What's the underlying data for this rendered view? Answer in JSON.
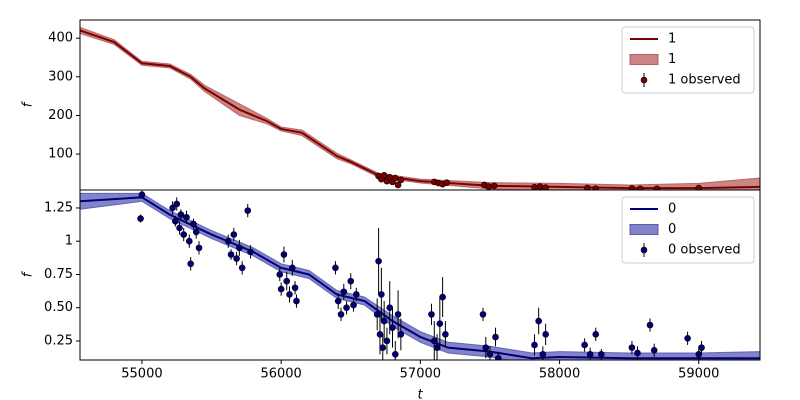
{
  "chart_data": [
    {
      "type": "line",
      "ylabel": "f",
      "xlim": [
        54555,
        59440
      ],
      "ylim": [
        7,
        447
      ],
      "yticks": [
        100,
        200,
        300,
        400
      ],
      "legend": "upper right",
      "series": [
        {
          "name": "1",
          "kind": "line",
          "color": "#7b0000",
          "x": [
            54555,
            54800,
            55000,
            55200,
            55350,
            55450,
            55700,
            55900,
            56000,
            56150,
            56400,
            56500,
            56700,
            57000,
            57500,
            58000,
            58500,
            59000,
            59440
          ],
          "values": [
            420,
            390,
            335,
            328,
            300,
            270,
            215,
            185,
            165,
            155,
            95,
            80,
            45,
            30,
            18,
            15,
            12,
            12,
            15
          ]
        },
        {
          "name": "1",
          "kind": "band",
          "color": "#b85c5c",
          "x": [
            54555,
            54800,
            55000,
            55200,
            55350,
            55450,
            55700,
            55900,
            56000,
            56150,
            56400,
            56500,
            56700,
            57000,
            57500,
            58000,
            58500,
            59000,
            59440
          ],
          "lower": [
            412,
            384,
            330,
            323,
            294,
            262,
            200,
            178,
            160,
            148,
            88,
            75,
            40,
            25,
            10,
            6,
            5,
            3,
            0
          ],
          "upper": [
            428,
            396,
            340,
            333,
            306,
            278,
            230,
            192,
            170,
            162,
            102,
            85,
            50,
            35,
            26,
            24,
            20,
            24,
            38
          ]
        },
        {
          "name": "1 observed",
          "kind": "points",
          "color": "#7b0000",
          "x": [
            56700,
            56720,
            56740,
            56760,
            56780,
            56800,
            56820,
            56840,
            56860,
            57100,
            57130,
            57160,
            57190,
            57460,
            57490,
            57530,
            57820,
            57860,
            57900,
            58200,
            58260,
            58520,
            58580,
            58700,
            59000
          ],
          "values": [
            43,
            35,
            45,
            30,
            40,
            28,
            38,
            20,
            33,
            28,
            25,
            22,
            26,
            20,
            16,
            18,
            14,
            16,
            13,
            12,
            10,
            11,
            10,
            10,
            12
          ],
          "errors": [
            3,
            3,
            3,
            3,
            3,
            3,
            3,
            3,
            3,
            3,
            3,
            3,
            3,
            3,
            3,
            3,
            3,
            3,
            3,
            3,
            3,
            3,
            3,
            3,
            3
          ]
        }
      ]
    },
    {
      "type": "line",
      "ylabel": "f",
      "xlabel": "t",
      "xlim": [
        54555,
        59440
      ],
      "ylim": [
        0.107,
        1.385
      ],
      "xticks": [
        55000,
        56000,
        57000,
        58000,
        59000
      ],
      "yticks": [
        0.25,
        0.5,
        0.75,
        1.0,
        1.25
      ],
      "legend": "upper right",
      "series": [
        {
          "name": "0",
          "kind": "line",
          "color": "#00007f",
          "x": [
            54555,
            55000,
            55200,
            55500,
            55800,
            56000,
            56200,
            56400,
            56600,
            56800,
            57000,
            57200,
            57500,
            57800,
            58000,
            58500,
            59000,
            59440
          ],
          "values": [
            1.3,
            1.33,
            1.2,
            1.05,
            0.92,
            0.8,
            0.75,
            0.6,
            0.55,
            0.4,
            0.28,
            0.2,
            0.17,
            0.12,
            0.13,
            0.12,
            0.12,
            0.12
          ]
        },
        {
          "name": "0",
          "kind": "band",
          "color": "#5a5ab5",
          "x": [
            54555,
            55000,
            55200,
            55500,
            55800,
            56000,
            56200,
            56400,
            56600,
            56800,
            57000,
            57200,
            57500,
            57800,
            58000,
            58500,
            59000,
            59440
          ],
          "lower": [
            1.24,
            1.3,
            1.17,
            1.02,
            0.89,
            0.77,
            0.72,
            0.57,
            0.52,
            0.36,
            0.24,
            0.16,
            0.13,
            0.08,
            0.09,
            0.08,
            0.08,
            0.07
          ],
          "upper": [
            1.36,
            1.36,
            1.23,
            1.08,
            0.95,
            0.83,
            0.78,
            0.63,
            0.58,
            0.44,
            0.32,
            0.24,
            0.21,
            0.16,
            0.17,
            0.16,
            0.16,
            0.17
          ]
        },
        {
          "name": "0 observed",
          "kind": "points",
          "color": "#00007f",
          "x": [
            54990,
            55000,
            55220,
            55240,
            55250,
            55270,
            55280,
            55300,
            55320,
            55340,
            55350,
            55370,
            55390,
            55410,
            55620,
            55640,
            55660,
            55680,
            55700,
            55720,
            55760,
            55780,
            55990,
            56000,
            56020,
            56040,
            56060,
            56080,
            56100,
            56110,
            56390,
            56410,
            56430,
            56450,
            56470,
            56500,
            56520,
            56540,
            56690,
            56700,
            56710,
            56720,
            56730,
            56740,
            56760,
            56780,
            56800,
            56820,
            56840,
            56860,
            57080,
            57100,
            57120,
            57140,
            57160,
            57180,
            57450,
            57470,
            57500,
            57540,
            57560,
            57820,
            57850,
            57880,
            57900,
            58180,
            58220,
            58260,
            58300,
            58520,
            58560,
            58650,
            58680,
            58920,
            59000,
            59020
          ],
          "values": [
            1.17,
            1.35,
            1.25,
            1.15,
            1.28,
            1.1,
            1.2,
            1.05,
            1.18,
            1.0,
            0.83,
            1.13,
            1.07,
            0.95,
            1.0,
            0.9,
            1.05,
            0.87,
            0.95,
            0.8,
            1.23,
            0.92,
            0.75,
            0.64,
            0.9,
            0.7,
            0.6,
            0.8,
            0.65,
            0.55,
            0.8,
            0.55,
            0.45,
            0.62,
            0.5,
            0.7,
            0.52,
            0.6,
            0.45,
            0.85,
            0.3,
            0.6,
            0.2,
            0.4,
            0.25,
            0.5,
            0.35,
            0.15,
            0.45,
            0.3,
            0.45,
            0.25,
            0.2,
            0.38,
            0.58,
            0.3,
            0.45,
            0.2,
            0.15,
            0.28,
            0.12,
            0.22,
            0.4,
            0.15,
            0.3,
            0.22,
            0.15,
            0.3,
            0.15,
            0.2,
            0.16,
            0.37,
            0.18,
            0.27,
            0.15,
            0.2
          ],
          "errors": [
            0.03,
            0.03,
            0.05,
            0.04,
            0.05,
            0.05,
            0.04,
            0.05,
            0.05,
            0.05,
            0.05,
            0.04,
            0.05,
            0.05,
            0.05,
            0.04,
            0.05,
            0.05,
            0.06,
            0.05,
            0.05,
            0.05,
            0.05,
            0.05,
            0.06,
            0.07,
            0.06,
            0.06,
            0.05,
            0.05,
            0.05,
            0.06,
            0.05,
            0.06,
            0.05,
            0.06,
            0.05,
            0.05,
            0.12,
            0.25,
            0.15,
            0.2,
            0.1,
            0.15,
            0.1,
            0.2,
            0.15,
            0.1,
            0.18,
            0.12,
            0.08,
            0.15,
            0.1,
            0.2,
            0.15,
            0.1,
            0.05,
            0.08,
            0.06,
            0.07,
            0.05,
            0.08,
            0.1,
            0.06,
            0.08,
            0.05,
            0.05,
            0.05,
            0.04,
            0.05,
            0.05,
            0.05,
            0.05,
            0.05,
            0.05,
            0.05
          ]
        }
      ]
    }
  ]
}
